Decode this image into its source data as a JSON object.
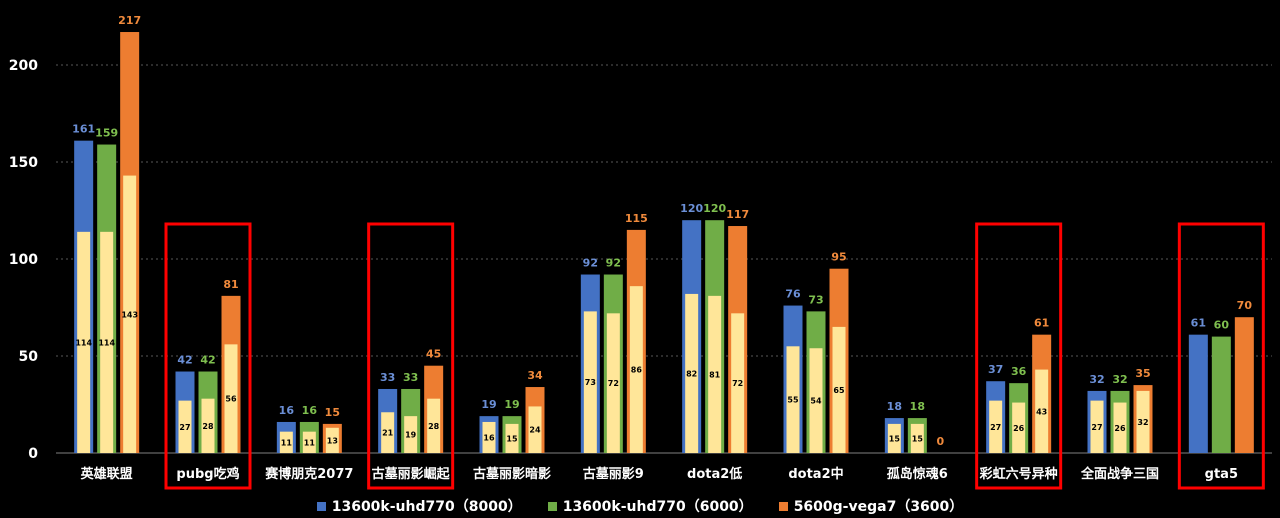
{
  "chart_data": {
    "type": "bar",
    "categories": [
      "英雄联盟",
      "pubg吃鸡",
      "赛博朋克2077",
      "古墓丽影崛起",
      "古墓丽影暗影",
      "古墓丽影9",
      "dota2低",
      "dota2中",
      "孤岛惊魂6",
      "彩虹六号异种",
      "全面战争三国",
      "gta5"
    ],
    "series": [
      {
        "name": "13600k-uhd770（8000）",
        "color": "#4472C4",
        "label_color": "#6b8fd6",
        "values": [
          161,
          42,
          16,
          33,
          19,
          92,
          120,
          76,
          18,
          37,
          32,
          61
        ],
        "inner_values": [
          114,
          27,
          11,
          21,
          16,
          73,
          82,
          55,
          15,
          27,
          27,
          null
        ]
      },
      {
        "name": "13600k-uhd770（6000）",
        "color": "#70AD47",
        "label_color": "#7fbf4f",
        "values": [
          159,
          42,
          16,
          33,
          19,
          92,
          120,
          73,
          18,
          36,
          32,
          60
        ],
        "inner_values": [
          114,
          28,
          11,
          19,
          15,
          72,
          81,
          54,
          15,
          26,
          26,
          null
        ]
      },
      {
        "name": "5600g-vega7（3600）",
        "color": "#ED7D31",
        "label_color": "#f08a3c",
        "values": [
          217,
          81,
          15,
          45,
          34,
          115,
          117,
          95,
          0,
          61,
          35,
          70
        ],
        "inner_values": [
          143,
          56,
          13,
          28,
          24,
          86,
          72,
          65,
          null,
          43,
          32,
          null
        ]
      }
    ],
    "inner_bar_color": "#FFE699",
    "y_ticks": [
      0,
      50,
      100,
      150,
      200
    ],
    "ylim": [
      0,
      225
    ],
    "highlighted_categories": [
      1,
      3,
      9,
      11
    ],
    "highlight_color": "#FF0000",
    "grid": "dotted-horizontal",
    "legend_position": "bottom"
  }
}
